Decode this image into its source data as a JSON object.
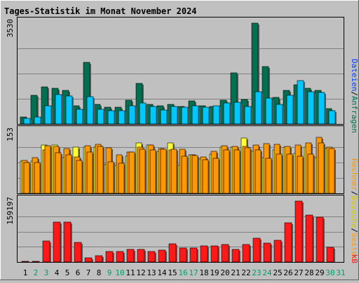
{
  "title": "Tages-Statistik im Monat November 2024",
  "colors": {
    "background": "#c0c0c0",
    "title": "#0000c0",
    "hits": "#007050",
    "files": "#00c8ff",
    "pages": "#ff9800",
    "visits": "#ffff30",
    "kbytes": "#ff1818",
    "weekend": "#00a060",
    "weekday": "#000000",
    "grid": "#808080"
  },
  "right_labels": {
    "hits": "Anfragen",
    "files": "Dateien",
    "pages": "Seiten",
    "visits": "Besuche",
    "sites": "Rechner",
    "kbytes": "kB",
    "sep": "/"
  },
  "chart_data": [
    {
      "type": "bar",
      "title": "Tages-Statistik im Monat November 2024",
      "ylabel": "3530",
      "ylim": [
        0,
        3530
      ],
      "grid": true,
      "categories": [
        "1",
        "2",
        "3",
        "4",
        "5",
        "6",
        "7",
        "8",
        "9",
        "10",
        "11",
        "12",
        "13",
        "14",
        "15",
        "16",
        "17",
        "18",
        "19",
        "20",
        "21",
        "22",
        "23",
        "24",
        "25",
        "26",
        "27",
        "28",
        "29",
        "30",
        "31"
      ],
      "weekend": [
        false,
        true,
        true,
        false,
        false,
        false,
        false,
        false,
        true,
        true,
        false,
        false,
        false,
        false,
        false,
        true,
        true,
        false,
        false,
        false,
        false,
        false,
        true,
        true,
        false,
        false,
        false,
        false,
        false,
        true,
        true
      ],
      "series": [
        {
          "name": "Anfragen",
          "values": [
            236,
            1011,
            1289,
            1249,
            1172,
            643,
            2158,
            685,
            590,
            590,
            832,
            1419,
            687,
            643,
            688,
            623,
            817,
            644,
            622,
            832,
            1785,
            867,
            3530,
            2010,
            934,
            1172,
            1371,
            1249,
            1170,
            550,
            0
          ]
        },
        {
          "name": "Dateien",
          "values": [
            196,
            237,
            643,
            1035,
            980,
            513,
            944,
            512,
            474,
            455,
            626,
            746,
            611,
            487,
            604,
            581,
            627,
            590,
            642,
            746,
            760,
            604,
            1116,
            912,
            686,
            1014,
            1527,
            1134,
            1108,
            455,
            0
          ]
        }
      ]
    },
    {
      "type": "bar",
      "ylabel": "153",
      "ylim": [
        0,
        153
      ],
      "grid": true,
      "categories": [
        "1",
        "2",
        "3",
        "4",
        "5",
        "6",
        "7",
        "8",
        "9",
        "10",
        "11",
        "12",
        "13",
        "14",
        "15",
        "16",
        "17",
        "18",
        "19",
        "20",
        "21",
        "22",
        "23",
        "24",
        "25",
        "26",
        "27",
        "28",
        "29",
        "30",
        "31"
      ],
      "series": [
        {
          "name": "Seiten",
          "values": [
            80,
            80,
            120,
            120,
            88,
            114,
            114,
            114,
            72,
            69,
            93,
            126,
            120,
            105,
            126,
            70,
            96,
            86,
            97,
            114,
            114,
            138,
            104,
            88,
            107,
            114,
            99,
            114,
            89,
            112,
            0
          ]
        },
        {
          "name": "Besuche",
          "values": [
            82,
            89,
            107,
            117,
            112,
            91,
            118,
            122,
            113,
            95,
            102,
            114,
            120,
            111,
            107,
            110,
            95,
            90,
            105,
            118,
            117,
            117,
            120,
            124,
            121,
            116,
            120,
            126,
            139,
            114,
            0
          ]
        },
        {
          "name": "Rechner",
          "values": [
            76,
            76,
            118,
            100,
            95,
            82,
            103,
            116,
            79,
            75,
            103,
            109,
            108,
            109,
            109,
            92,
            94,
            84,
            87,
            107,
            108,
            113,
            108,
            87,
            98,
            98,
            93,
            98,
            126,
            112,
            0
          ]
        }
      ]
    },
    {
      "type": "bar",
      "ylabel": "159197",
      "ylim": [
        0,
        159197
      ],
      "grid": true,
      "categories": [
        "1",
        "2",
        "3",
        "4",
        "5",
        "6",
        "7",
        "8",
        "9",
        "10",
        "11",
        "12",
        "13",
        "14",
        "15",
        "16",
        "17",
        "18",
        "19",
        "20",
        "21",
        "22",
        "23",
        "24",
        "25",
        "26",
        "27",
        "28",
        "29",
        "30",
        "31"
      ],
      "series": [
        {
          "name": "kB",
          "values": [
            2000,
            2000,
            55000,
            104000,
            104000,
            52000,
            11000,
            16000,
            27000,
            27000,
            33000,
            33000,
            27000,
            31000,
            48000,
            37000,
            37000,
            43000,
            43000,
            45000,
            33000,
            45000,
            62000,
            49000,
            56000,
            102000,
            159197,
            123000,
            118000,
            38000,
            0
          ]
        }
      ]
    }
  ]
}
